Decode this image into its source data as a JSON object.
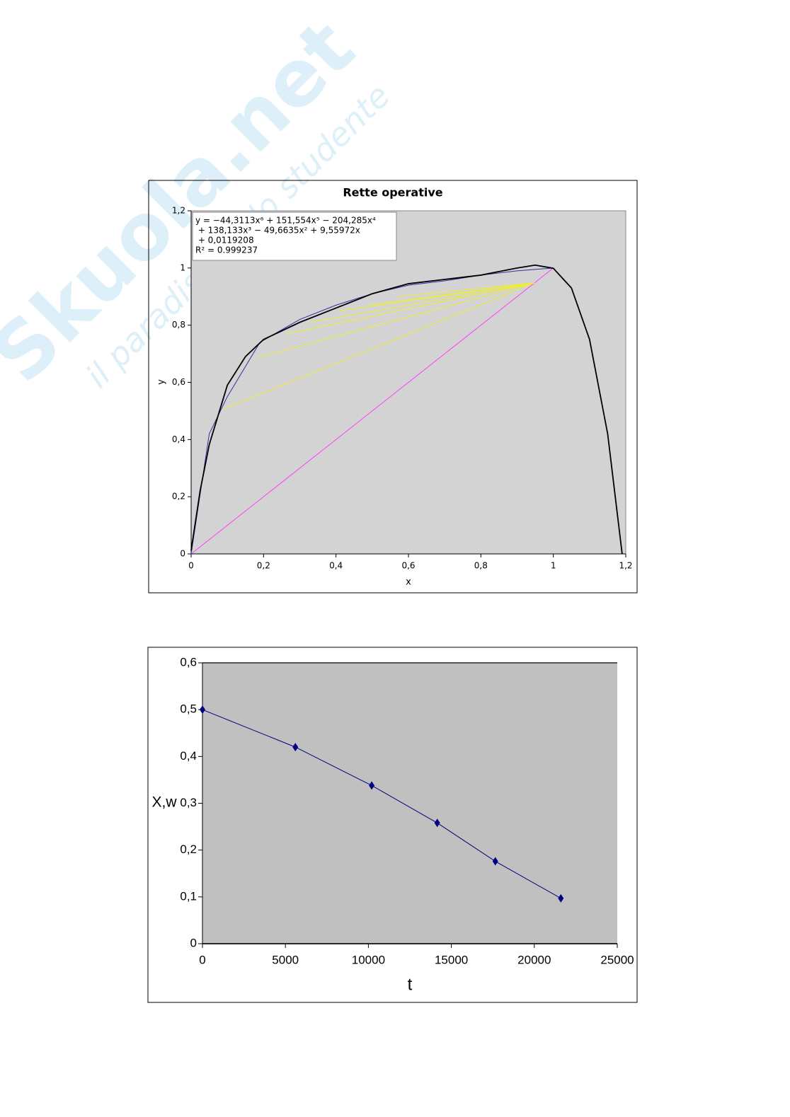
{
  "watermark": {
    "brand": "Skuola.net",
    "tagline": "il paradiso dello studente"
  },
  "chart_data": [
    {
      "type": "line",
      "title": "Rette operative",
      "x_label": "x",
      "y_label": "y",
      "xlim": [
        0,
        1.2
      ],
      "ylim": [
        0,
        1.2
      ],
      "xticks": [
        0,
        {
          "value": 0.2,
          "label": "0,2"
        },
        {
          "value": 0.4,
          "label": "0,4"
        },
        {
          "value": 0.6,
          "label": "0,6"
        },
        {
          "value": 0.8,
          "label": "0,8"
        },
        1,
        {
          "value": 1.2,
          "label": "1,2"
        }
      ],
      "yticks": [
        0,
        {
          "value": 0.2,
          "label": "0,2"
        },
        {
          "value": 0.4,
          "label": "0,4"
        },
        {
          "value": 0.6,
          "label": "0,6"
        },
        {
          "value": 0.8,
          "label": "0,8"
        },
        1,
        {
          "value": 1.2,
          "label": "1,2"
        }
      ],
      "annotations": [
        "y = −44,3113x⁶ + 151,554x⁵ − 204,285x⁴",
        " + 138,133x³ − 49,6635x² + 9,55972x",
        " + 0,0119208",
        "R² = 0.999237"
      ],
      "series": [
        {
          "color": "#ff40ff",
          "x": [
            0,
            1
          ],
          "values": [
            0,
            1
          ]
        },
        {
          "color": "#eeee30",
          "x": [
            0.09,
            0.948,
            null,
            0.186,
            0.948,
            null,
            0.264,
            0.948,
            null,
            0.33,
            0.948,
            null,
            0.41,
            0.948,
            null,
            0.49,
            0.948,
            null,
            0.57,
            0.948
          ],
          "values": [
            0.507,
            0.948,
            null,
            0.688,
            0.948,
            null,
            0.77,
            0.948,
            null,
            0.81,
            0.948,
            null,
            0.85,
            0.948,
            null,
            0.87,
            0.948,
            null,
            0.9,
            0.948
          ]
        },
        {
          "color": "#3030a0",
          "x": [
            0,
            0.05,
            0.1,
            0.19,
            0.3,
            0.4,
            0.5,
            0.6,
            0.7,
            0.8,
            0.9,
            1
          ],
          "values": [
            0,
            0.42,
            0.55,
            0.74,
            0.82,
            0.87,
            0.91,
            0.94,
            0.955,
            0.975,
            0.99,
            1
          ]
        },
        {
          "color": "#000000",
          "x": [
            0,
            0.025,
            0.05,
            0.1,
            0.15,
            0.2,
            0.3,
            0.4,
            0.5,
            0.6,
            0.7,
            0.8,
            0.9,
            0.95,
            1,
            1.05,
            1.1,
            1.15,
            1.19
          ],
          "values": [
            0.012,
            0.222,
            0.382,
            0.59,
            0.69,
            0.75,
            0.81,
            0.86,
            0.91,
            0.945,
            0.96,
            0.975,
            1.0,
            1.01,
            0.999,
            0.93,
            0.75,
            0.42,
            0
          ]
        }
      ]
    },
    {
      "type": "line",
      "x_label": "t",
      "y_label": "X,w",
      "xlim": [
        0,
        25000
      ],
      "ylim": [
        0,
        0.6
      ],
      "xticks": [
        0,
        5000,
        10000,
        15000,
        20000,
        25000
      ],
      "yticks": [
        0,
        {
          "value": 0.1,
          "label": "0,1"
        },
        {
          "value": 0.2,
          "label": "0,2"
        },
        {
          "value": 0.3,
          "label": "0,3"
        },
        {
          "value": 0.4,
          "label": "0,4"
        },
        {
          "value": 0.5,
          "label": "0,5"
        },
        {
          "value": 0.6,
          "label": "0,6"
        }
      ],
      "series": [
        {
          "color": "#000080",
          "marker": "diamond",
          "x": [
            0,
            5600,
            10200,
            14150,
            17650,
            21600
          ],
          "values": [
            0.5,
            0.42,
            0.338,
            0.258,
            0.176,
            0.097
          ]
        }
      ]
    }
  ]
}
